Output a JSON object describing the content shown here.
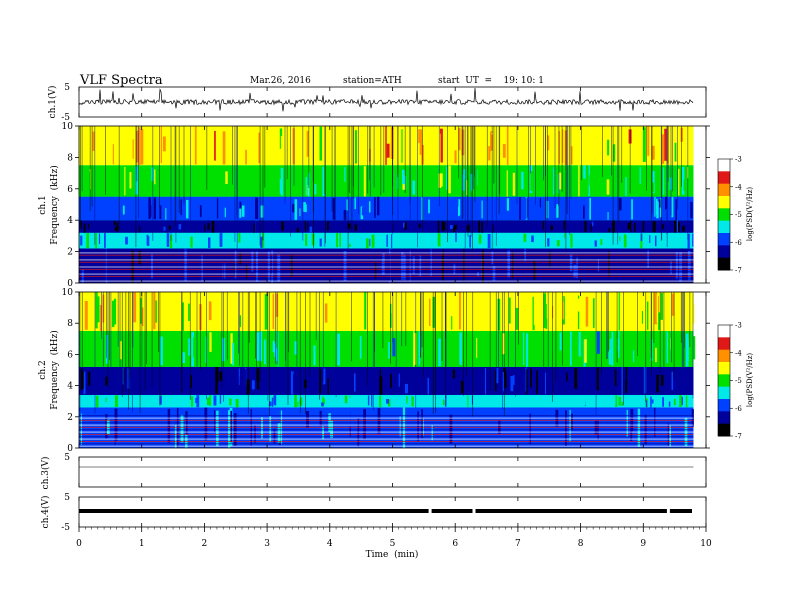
{
  "header": {
    "title": "VLF  Spectra",
    "date": "Mar.26, 2016",
    "station": "station=ATH",
    "start": "start  UT  =    19: 10: 1"
  },
  "chart_data": [
    {
      "type": "line",
      "name": "ch1-waveform",
      "ylabel": "ch.1(V)",
      "ylim": [
        -5,
        5
      ],
      "yticks": [
        "5",
        "-5"
      ],
      "xlim": [
        0,
        10
      ],
      "data_end_min": 9.8
    },
    {
      "type": "heatmap",
      "name": "ch1-spectrogram",
      "ylabel": "ch.1\nFrequency  (kHz)",
      "ylabel_top": "ch.1",
      "ylabel_bottom": "Frequency  (kHz)",
      "ylim": [
        0,
        10
      ],
      "yticks": [
        "0",
        "2",
        "4",
        "6",
        "8",
        "10"
      ],
      "colorbar": {
        "label": "log(PSD(V²/Hz)",
        "range": [
          -7,
          -3
        ],
        "ticks": [
          "-3",
          "-4",
          "-5",
          "-6",
          "-7"
        ],
        "colors": [
          "#ffffff",
          "#e01818",
          "#ff9000",
          "#ffff00",
          "#00e000",
          "#00e8e8",
          "#0040ff",
          "#00009a",
          "#000000"
        ]
      },
      "bands_khz": [
        {
          "from": 0,
          "to": 2.2,
          "level": -6.3,
          "note": "dark narrow lines"
        },
        {
          "from": 2.2,
          "to": 3.2,
          "level": -5.2
        },
        {
          "from": 3.2,
          "to": 4.0,
          "level": -6.7
        },
        {
          "from": 4.0,
          "to": 5.5,
          "level": -5.8
        },
        {
          "from": 5.5,
          "to": 7.5,
          "level": -4.8
        },
        {
          "from": 7.5,
          "to": 10,
          "level": -3.9
        }
      ]
    },
    {
      "type": "heatmap",
      "name": "ch2-spectrogram",
      "ylabel": "ch.2\nFrequency  (kHz)",
      "ylabel_top": "ch.2",
      "ylabel_bottom": "Frequency  (kHz)",
      "ylim": [
        0,
        10
      ],
      "yticks": [
        "0",
        "2",
        "4",
        "6",
        "8",
        "10"
      ],
      "colorbar": {
        "label": "log(PSD(V²/Hz)",
        "range": [
          -7,
          -3
        ],
        "ticks": [
          "-3",
          "-4",
          "-5",
          "-6",
          "-7"
        ],
        "colors": [
          "#ffffff",
          "#e01818",
          "#ff9000",
          "#ffff00",
          "#00e000",
          "#00e8e8",
          "#0040ff",
          "#00009a",
          "#000000"
        ]
      },
      "bands_khz": [
        {
          "from": 0,
          "to": 2.6,
          "level": -6.0
        },
        {
          "from": 2.6,
          "to": 3.4,
          "level": -5.2
        },
        {
          "from": 3.4,
          "to": 5.2,
          "level": -6.5
        },
        {
          "from": 5.2,
          "to": 7.5,
          "level": -4.9
        },
        {
          "from": 7.5,
          "to": 10,
          "level": -4.2
        }
      ]
    },
    {
      "type": "line",
      "name": "ch3-waveform",
      "ylabel": "ch.3(V)",
      "ylim": [
        -5,
        5
      ],
      "yticks": [
        "5"
      ],
      "values_summary": "flat near 0 V"
    },
    {
      "type": "line",
      "name": "ch4-waveform",
      "ylabel": "ch.4(V)",
      "ylim": [
        -5,
        5
      ],
      "yticks": [
        "5",
        "-5"
      ],
      "values_summary": "thick band near 0 V with dropouts",
      "gaps_min": [
        5.6,
        6.3,
        9.4
      ]
    }
  ],
  "xaxis": {
    "label": "Time  (min)",
    "range": [
      0,
      10
    ],
    "ticks": [
      "0",
      "1",
      "2",
      "3",
      "4",
      "5",
      "6",
      "7",
      "8",
      "9",
      "10"
    ]
  }
}
